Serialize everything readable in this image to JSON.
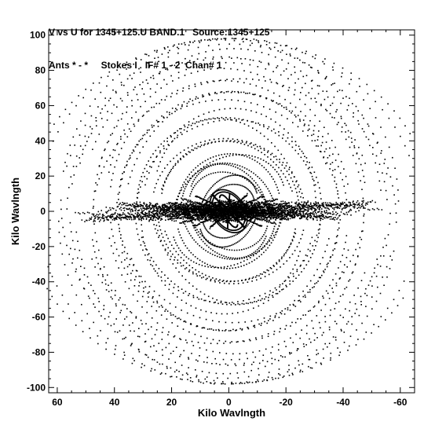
{
  "header": {
    "line1": "V vs U for 1345+125.U BAND.1   Source:1345+125",
    "line2": "Ants * - *     Stokes I   IF# 1 - 2  Chan# 1"
  },
  "chart_data": {
    "type": "scatter",
    "title": "V vs U for 1345+125.U BAND.1   Source:1345+125",
    "subtitle": "Ants * - *     Stokes I   IF# 1 - 2  Chan# 1",
    "xlabel": "Kilo Wavlngth",
    "ylabel": "Kilo Wavlngth",
    "xlim": [
      63,
      -65
    ],
    "ylim": [
      -103,
      103
    ],
    "x_axis_reversed": true,
    "x_ticks": [
      60,
      40,
      20,
      0,
      -20,
      -40,
      -60
    ],
    "x_tick_labels": [
      "60",
      "40",
      "20",
      "0",
      "-20",
      "-40",
      "-60"
    ],
    "y_ticks": [
      -100,
      -80,
      -60,
      -40,
      -20,
      0,
      20,
      40,
      60,
      80,
      100
    ],
    "y_tick_labels": [
      "-100",
      "-80",
      "-60",
      "-40",
      "-20",
      "0",
      "20",
      "40",
      "60",
      "80",
      "100"
    ],
    "grid": false,
    "marker": "dot",
    "color": "#000000",
    "point_count_approx": 6000,
    "description_note": "UV coverage: symmetric tracks; dense near origin, horizontal spread to |u|~55 at v~0, outer tracks reaching |v|~100"
  }
}
